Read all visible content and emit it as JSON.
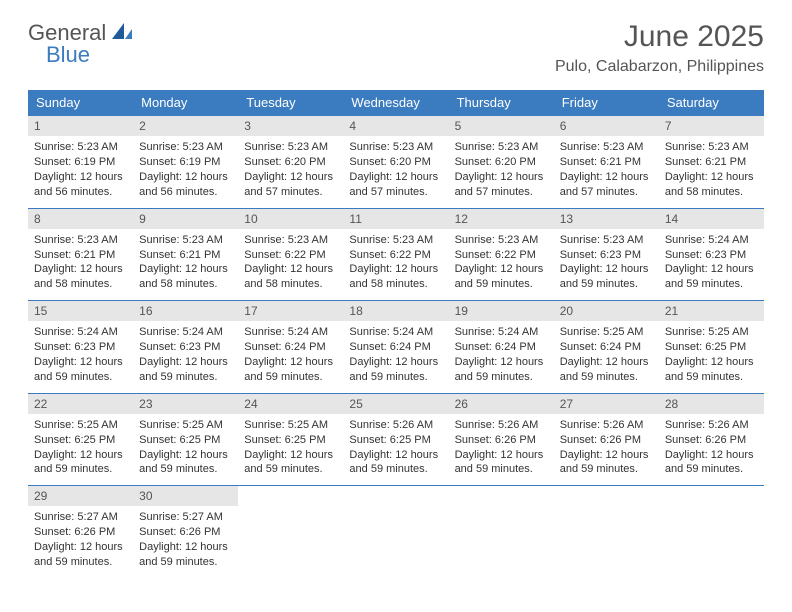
{
  "logo": {
    "general": "General",
    "blue": "Blue"
  },
  "title": "June 2025",
  "location": "Pulo, Calabarzon, Philippines",
  "colors": {
    "header_bg": "#3b7bbf",
    "header_text": "#ffffff",
    "numbar_bg": "#e6e6e6",
    "text": "#333333",
    "border": "#3b7bbf"
  },
  "dayNames": [
    "Sunday",
    "Monday",
    "Tuesday",
    "Wednesday",
    "Thursday",
    "Friday",
    "Saturday"
  ],
  "days": [
    {
      "n": 1,
      "sr": "5:23 AM",
      "ss": "6:19 PM",
      "dl": "12 hours and 56 minutes."
    },
    {
      "n": 2,
      "sr": "5:23 AM",
      "ss": "6:19 PM",
      "dl": "12 hours and 56 minutes."
    },
    {
      "n": 3,
      "sr": "5:23 AM",
      "ss": "6:20 PM",
      "dl": "12 hours and 57 minutes."
    },
    {
      "n": 4,
      "sr": "5:23 AM",
      "ss": "6:20 PM",
      "dl": "12 hours and 57 minutes."
    },
    {
      "n": 5,
      "sr": "5:23 AM",
      "ss": "6:20 PM",
      "dl": "12 hours and 57 minutes."
    },
    {
      "n": 6,
      "sr": "5:23 AM",
      "ss": "6:21 PM",
      "dl": "12 hours and 57 minutes."
    },
    {
      "n": 7,
      "sr": "5:23 AM",
      "ss": "6:21 PM",
      "dl": "12 hours and 58 minutes."
    },
    {
      "n": 8,
      "sr": "5:23 AM",
      "ss": "6:21 PM",
      "dl": "12 hours and 58 minutes."
    },
    {
      "n": 9,
      "sr": "5:23 AM",
      "ss": "6:21 PM",
      "dl": "12 hours and 58 minutes."
    },
    {
      "n": 10,
      "sr": "5:23 AM",
      "ss": "6:22 PM",
      "dl": "12 hours and 58 minutes."
    },
    {
      "n": 11,
      "sr": "5:23 AM",
      "ss": "6:22 PM",
      "dl": "12 hours and 58 minutes."
    },
    {
      "n": 12,
      "sr": "5:23 AM",
      "ss": "6:22 PM",
      "dl": "12 hours and 59 minutes."
    },
    {
      "n": 13,
      "sr": "5:23 AM",
      "ss": "6:23 PM",
      "dl": "12 hours and 59 minutes."
    },
    {
      "n": 14,
      "sr": "5:24 AM",
      "ss": "6:23 PM",
      "dl": "12 hours and 59 minutes."
    },
    {
      "n": 15,
      "sr": "5:24 AM",
      "ss": "6:23 PM",
      "dl": "12 hours and 59 minutes."
    },
    {
      "n": 16,
      "sr": "5:24 AM",
      "ss": "6:23 PM",
      "dl": "12 hours and 59 minutes."
    },
    {
      "n": 17,
      "sr": "5:24 AM",
      "ss": "6:24 PM",
      "dl": "12 hours and 59 minutes."
    },
    {
      "n": 18,
      "sr": "5:24 AM",
      "ss": "6:24 PM",
      "dl": "12 hours and 59 minutes."
    },
    {
      "n": 19,
      "sr": "5:24 AM",
      "ss": "6:24 PM",
      "dl": "12 hours and 59 minutes."
    },
    {
      "n": 20,
      "sr": "5:25 AM",
      "ss": "6:24 PM",
      "dl": "12 hours and 59 minutes."
    },
    {
      "n": 21,
      "sr": "5:25 AM",
      "ss": "6:25 PM",
      "dl": "12 hours and 59 minutes."
    },
    {
      "n": 22,
      "sr": "5:25 AM",
      "ss": "6:25 PM",
      "dl": "12 hours and 59 minutes."
    },
    {
      "n": 23,
      "sr": "5:25 AM",
      "ss": "6:25 PM",
      "dl": "12 hours and 59 minutes."
    },
    {
      "n": 24,
      "sr": "5:25 AM",
      "ss": "6:25 PM",
      "dl": "12 hours and 59 minutes."
    },
    {
      "n": 25,
      "sr": "5:26 AM",
      "ss": "6:25 PM",
      "dl": "12 hours and 59 minutes."
    },
    {
      "n": 26,
      "sr": "5:26 AM",
      "ss": "6:26 PM",
      "dl": "12 hours and 59 minutes."
    },
    {
      "n": 27,
      "sr": "5:26 AM",
      "ss": "6:26 PM",
      "dl": "12 hours and 59 minutes."
    },
    {
      "n": 28,
      "sr": "5:26 AM",
      "ss": "6:26 PM",
      "dl": "12 hours and 59 minutes."
    },
    {
      "n": 29,
      "sr": "5:27 AM",
      "ss": "6:26 PM",
      "dl": "12 hours and 59 minutes."
    },
    {
      "n": 30,
      "sr": "5:27 AM",
      "ss": "6:26 PM",
      "dl": "12 hours and 59 minutes."
    }
  ],
  "labels": {
    "sunrise": "Sunrise:",
    "sunset": "Sunset:",
    "daylight": "Daylight:"
  }
}
